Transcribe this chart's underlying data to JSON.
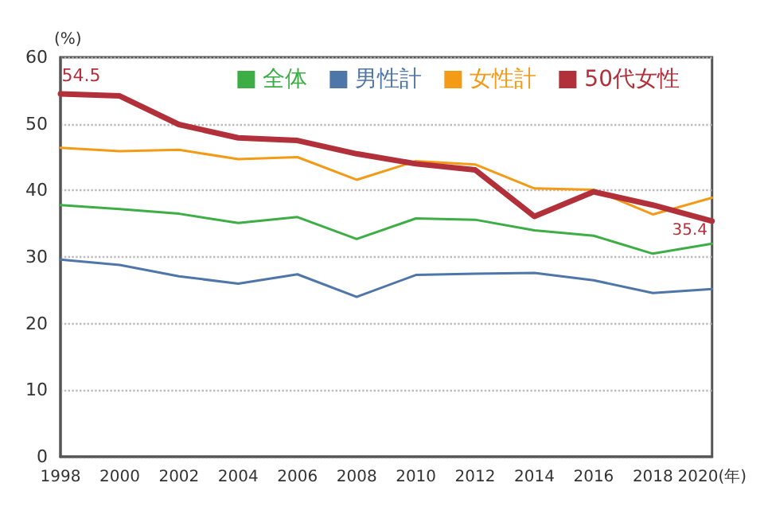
{
  "chart_data": {
    "type": "line",
    "ylabel": "(%)",
    "categories": [
      "1998",
      "2000",
      "2002",
      "2004",
      "2006",
      "2008",
      "2010",
      "2012",
      "2014",
      "2016",
      "2018",
      "2020(年)"
    ],
    "series": [
      {
        "name": "全体",
        "color": "#3cae45",
        "values": [
          37.8,
          37.2,
          36.5,
          35.1,
          36.0,
          32.7,
          35.8,
          35.6,
          34.0,
          33.2,
          30.5,
          32.0
        ]
      },
      {
        "name": "男性計",
        "color": "#4f76a8",
        "values": [
          29.6,
          28.8,
          27.1,
          26.0,
          27.4,
          24.0,
          27.3,
          27.5,
          27.6,
          26.5,
          24.6,
          25.2
        ]
      },
      {
        "name": "女性計",
        "color": "#f39a16",
        "values": [
          46.4,
          45.9,
          46.1,
          44.7,
          45.0,
          41.6,
          44.4,
          43.9,
          40.3,
          40.1,
          36.4,
          38.9
        ]
      },
      {
        "name": "50代女性",
        "color": "#b2303a",
        "values": [
          54.5,
          54.2,
          49.9,
          47.9,
          47.5,
          45.5,
          44.0,
          43.1,
          36.1,
          39.8,
          37.8,
          35.4
        ],
        "value_labels": [
          "54.5",
          null,
          null,
          null,
          null,
          null,
          null,
          null,
          null,
          null,
          null,
          "35.4"
        ]
      }
    ],
    "ylim": [
      0,
      60
    ],
    "yticks": [
      0,
      10,
      20,
      30,
      40,
      50,
      60
    ],
    "grid": "y",
    "legend": "top right",
    "marker": "none",
    "line_style": "solid"
  }
}
